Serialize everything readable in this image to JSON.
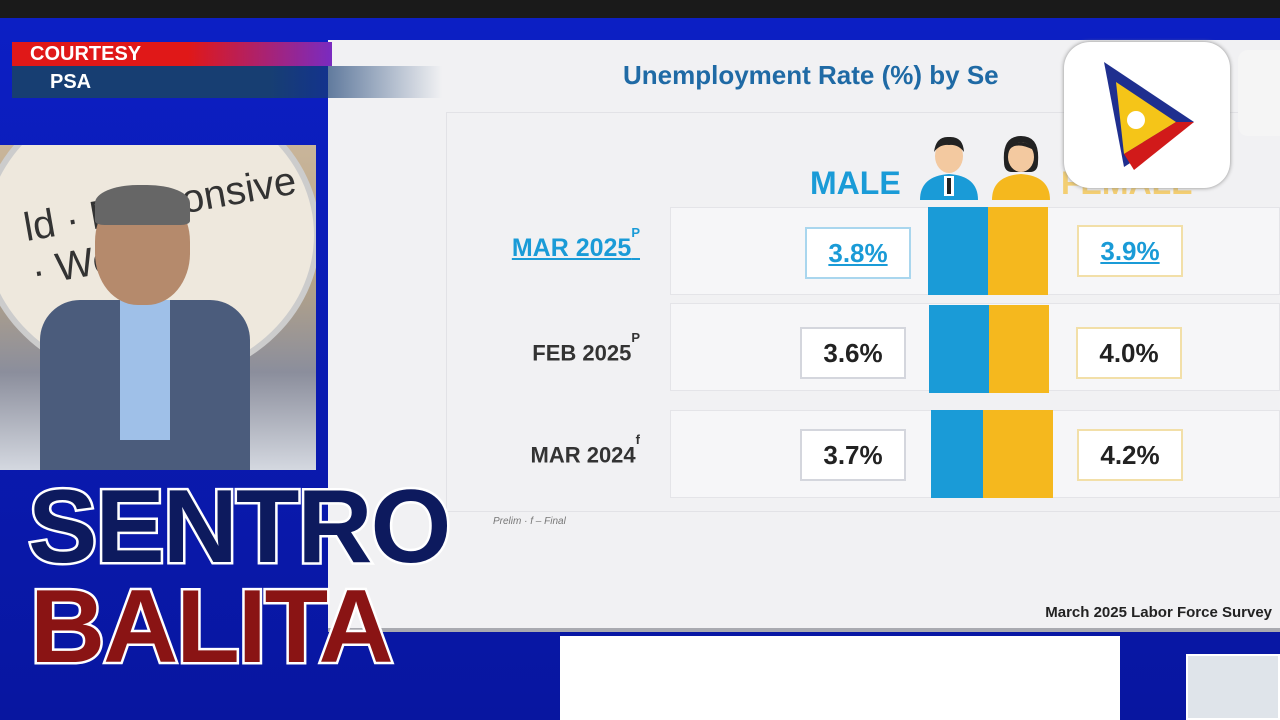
{
  "overlay": {
    "courtesy_label": "COURTESY",
    "source": "PSA"
  },
  "background_seal_text": "ld · Responsive · Wor",
  "slide": {
    "title": "Unemployment Rate (%) by Se",
    "male_header": "MALE",
    "female_header": "FEMALE",
    "rows": [
      {
        "period": "MAR 2025",
        "marker": "P",
        "male": "3.8%",
        "female": "3.9%",
        "active": true
      },
      {
        "period": "FEB 2025",
        "marker": "P",
        "male": "3.6%",
        "female": "4.0%",
        "active": false
      },
      {
        "period": "MAR 2024",
        "marker": "f",
        "male": "3.7%",
        "female": "4.2%",
        "active": false
      }
    ],
    "footnote": "Prelim · f – Final",
    "source": "March 2025 Labor Force Survey"
  },
  "colors": {
    "male": "#1a9bd7",
    "female": "#f5b81e",
    "brand_blue": "#0d1a5e",
    "brand_red": "#8a1414"
  },
  "brand": {
    "line1": "SENTRO",
    "line2": "BALITA"
  },
  "icons": [
    "male-person-icon",
    "female-person-icon",
    "ptv-logo-icon"
  ]
}
